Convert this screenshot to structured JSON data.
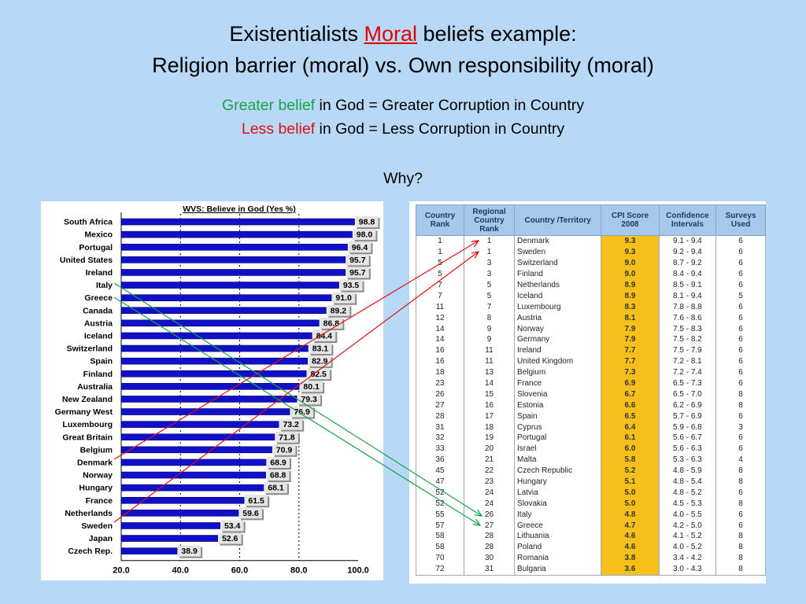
{
  "slide": {
    "title_pre": "Existentialists ",
    "title_moral": "Moral",
    "title_post": " beliefs example:",
    "title_line2": "Religion barrier (moral)  vs. Own responsibility (moral)",
    "line1_colored": "Greater belief",
    "line1_rest": " in God = Greater Corruption in Country",
    "line2_colored": "Less belief",
    "line2_rest": " in God = Less Corruption in Country",
    "why": "Why?"
  },
  "colors": {
    "background": "#b8d8f8",
    "bar": "#1010c8",
    "green": "#1aa34a",
    "red": "#e01010",
    "cpi_highlight": "#f6c01c",
    "header": "#a6c8ea"
  },
  "chart_data": [
    {
      "type": "bar",
      "orientation": "horizontal",
      "title": "WVS: Believe in God (Yes %)",
      "categories": [
        "South Africa",
        "Mexico",
        "Portugal",
        "United States",
        "Ireland",
        "Italy",
        "Greece",
        "Canada",
        "Austria",
        "Iceland",
        "Switzerland",
        "Spain",
        "Finland",
        "Australia",
        "New Zealand",
        "Germany West",
        "Luxembourg",
        "Great Britain",
        "Belgium",
        "Denmark",
        "Norway",
        "Hungary",
        "France",
        "Netherlands",
        "Sweden",
        "Japan",
        "Czech Rep."
      ],
      "values": [
        98.8,
        98.0,
        96.4,
        95.7,
        95.7,
        93.5,
        91.0,
        89.2,
        86.8,
        84.4,
        83.1,
        82.9,
        82.5,
        80.1,
        79.3,
        76.9,
        73.2,
        71.8,
        70.9,
        68.9,
        68.8,
        68.1,
        61.5,
        59.6,
        53.4,
        52.6,
        38.9
      ],
      "data_labels": [
        "98.8",
        "98.0",
        "96.4",
        "95.7",
        "95.7",
        "93.5",
        "91.0",
        "89.2",
        "86.8",
        "84.4",
        "83.1",
        "82.9",
        "82.5",
        "80.1",
        "79.3",
        "76.9",
        "73.2",
        "71.8",
        "70.9",
        "68.9",
        "68.8",
        "68.1",
        "61.5",
        "59.6",
        "53.4",
        "52.6",
        "38.9"
      ],
      "xlim": [
        20,
        100
      ],
      "xticks": [
        "20.0",
        "40.0",
        "60.0",
        "80.0",
        "100.0"
      ],
      "grid": "dashed vertical"
    },
    {
      "type": "table",
      "columns": [
        "Country Rank",
        "Regional Country Rank",
        "Country /Territory",
        "CPI Score 2008",
        "Confidence Intervals",
        "Surveys Used"
      ],
      "rows": [
        [
          "1",
          "1",
          "Denmark",
          "9.3",
          "9.1 - 9.4",
          "6"
        ],
        [
          "1",
          "1",
          "Sweden",
          "9.3",
          "9.2 - 9.4",
          "6"
        ],
        [
          "5",
          "3",
          "Switzerland",
          "9.0",
          "8.7 - 9.2",
          "6"
        ],
        [
          "5",
          "3",
          "Finland",
          "9.0",
          "8.4 - 9.4",
          "6"
        ],
        [
          "7",
          "5",
          "Netherlands",
          "8.9",
          "8.5 - 9.1",
          "6"
        ],
        [
          "7",
          "5",
          "Iceland",
          "8.9",
          "8.1 - 9.4",
          "5"
        ],
        [
          "11",
          "7",
          "Luxembourg",
          "8.3",
          "7.8 - 8.8",
          "6"
        ],
        [
          "12",
          "8",
          "Austria",
          "8.1",
          "7.6 - 8.6",
          "6"
        ],
        [
          "14",
          "9",
          "Norway",
          "7.9",
          "7.5 - 8.3",
          "6"
        ],
        [
          "14",
          "9",
          "Germany",
          "7.9",
          "7.5 - 8.2",
          "6"
        ],
        [
          "16",
          "11",
          "Ireland",
          "7.7",
          "7.5 - 7.9",
          "6"
        ],
        [
          "16",
          "11",
          "United Kingdom",
          "7.7",
          "7.2 - 8.1",
          "6"
        ],
        [
          "18",
          "13",
          "Belgium",
          "7.3",
          "7.2 - 7.4",
          "6"
        ],
        [
          "23",
          "14",
          "France",
          "6.9",
          "6.5 - 7.3",
          "6"
        ],
        [
          "26",
          "15",
          "Slovenia",
          "6.7",
          "6.5 - 7.0",
          "8"
        ],
        [
          "27",
          "16",
          "Estonia",
          "6.6",
          "6.2 - 6.9",
          "8"
        ],
        [
          "28",
          "17",
          "Spain",
          "6.5",
          "5.7 - 6.9",
          "6"
        ],
        [
          "31",
          "18",
          "Cyprus",
          "6.4",
          "5.9 - 6.8",
          "3"
        ],
        [
          "32",
          "19",
          "Portugal",
          "6.1",
          "5.6 - 6.7",
          "6"
        ],
        [
          "33",
          "20",
          "Israel",
          "6.0",
          "5.6 - 6.3",
          "6"
        ],
        [
          "36",
          "21",
          "Malta",
          "5.8",
          "5.3 - 6.3",
          "4"
        ],
        [
          "45",
          "22",
          "Czech Republic",
          "5.2",
          "4.8 - 5.9",
          "8"
        ],
        [
          "47",
          "23",
          "Hungary",
          "5.1",
          "4.8 - 5.4",
          "8"
        ],
        [
          "52",
          "24",
          "Latvia",
          "5.0",
          "4.8 - 5.2",
          "6"
        ],
        [
          "52",
          "24",
          "Slovakia",
          "5.0",
          "4.5 - 5.3",
          "8"
        ],
        [
          "55",
          "26",
          "Italy",
          "4.8",
          "4.0 - 5.5",
          "6"
        ],
        [
          "57",
          "27",
          "Greece",
          "4.7",
          "4.2 - 5.0",
          "6"
        ],
        [
          "58",
          "28",
          "Lithuania",
          "4.6",
          "4.1 - 5.2",
          "8"
        ],
        [
          "58",
          "28",
          "Poland",
          "4.6",
          "4.0 - 5.2",
          "8"
        ],
        [
          "70",
          "30",
          "Romania",
          "3.8",
          "3.4 - 4.2",
          "8"
        ],
        [
          "72",
          "31",
          "Bulgaria",
          "3.6",
          "3.0 - 4.3",
          "8"
        ]
      ]
    }
  ]
}
